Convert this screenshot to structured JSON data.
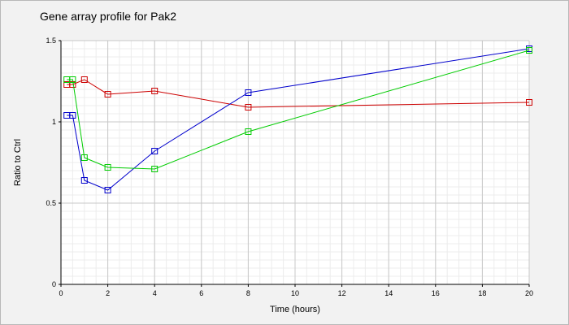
{
  "chart_data": {
    "type": "line",
    "title": "Gene array profile for Pak2",
    "xlabel": "Time (hours)",
    "ylabel": "Ratio to Ctrl",
    "xlim": [
      0,
      20
    ],
    "ylim": [
      0,
      1.5
    ],
    "xticks": [
      "0",
      "2",
      "4",
      "6",
      "8",
      "10",
      "12",
      "14",
      "16",
      "18",
      "20"
    ],
    "yticks": [
      "0",
      "0.5",
      "1",
      "1.5"
    ],
    "grid": true,
    "legend": "none",
    "series": [
      {
        "color": "#cc0000",
        "x": [
          0.25,
          0.5,
          1,
          2,
          4,
          8,
          20
        ],
        "y": [
          1.23,
          1.23,
          1.26,
          1.17,
          1.19,
          1.09,
          1.12
        ]
      },
      {
        "color": "#0000cc",
        "x": [
          0.25,
          0.5,
          1,
          2,
          4,
          8,
          20
        ],
        "y": [
          1.04,
          1.04,
          0.64,
          0.58,
          0.82,
          1.18,
          1.45
        ]
      },
      {
        "color": "#00cc00",
        "x": [
          0.25,
          0.5,
          1,
          2,
          4,
          8,
          20
        ],
        "y": [
          1.26,
          1.26,
          0.78,
          0.72,
          0.71,
          0.94,
          1.44
        ]
      }
    ]
  }
}
